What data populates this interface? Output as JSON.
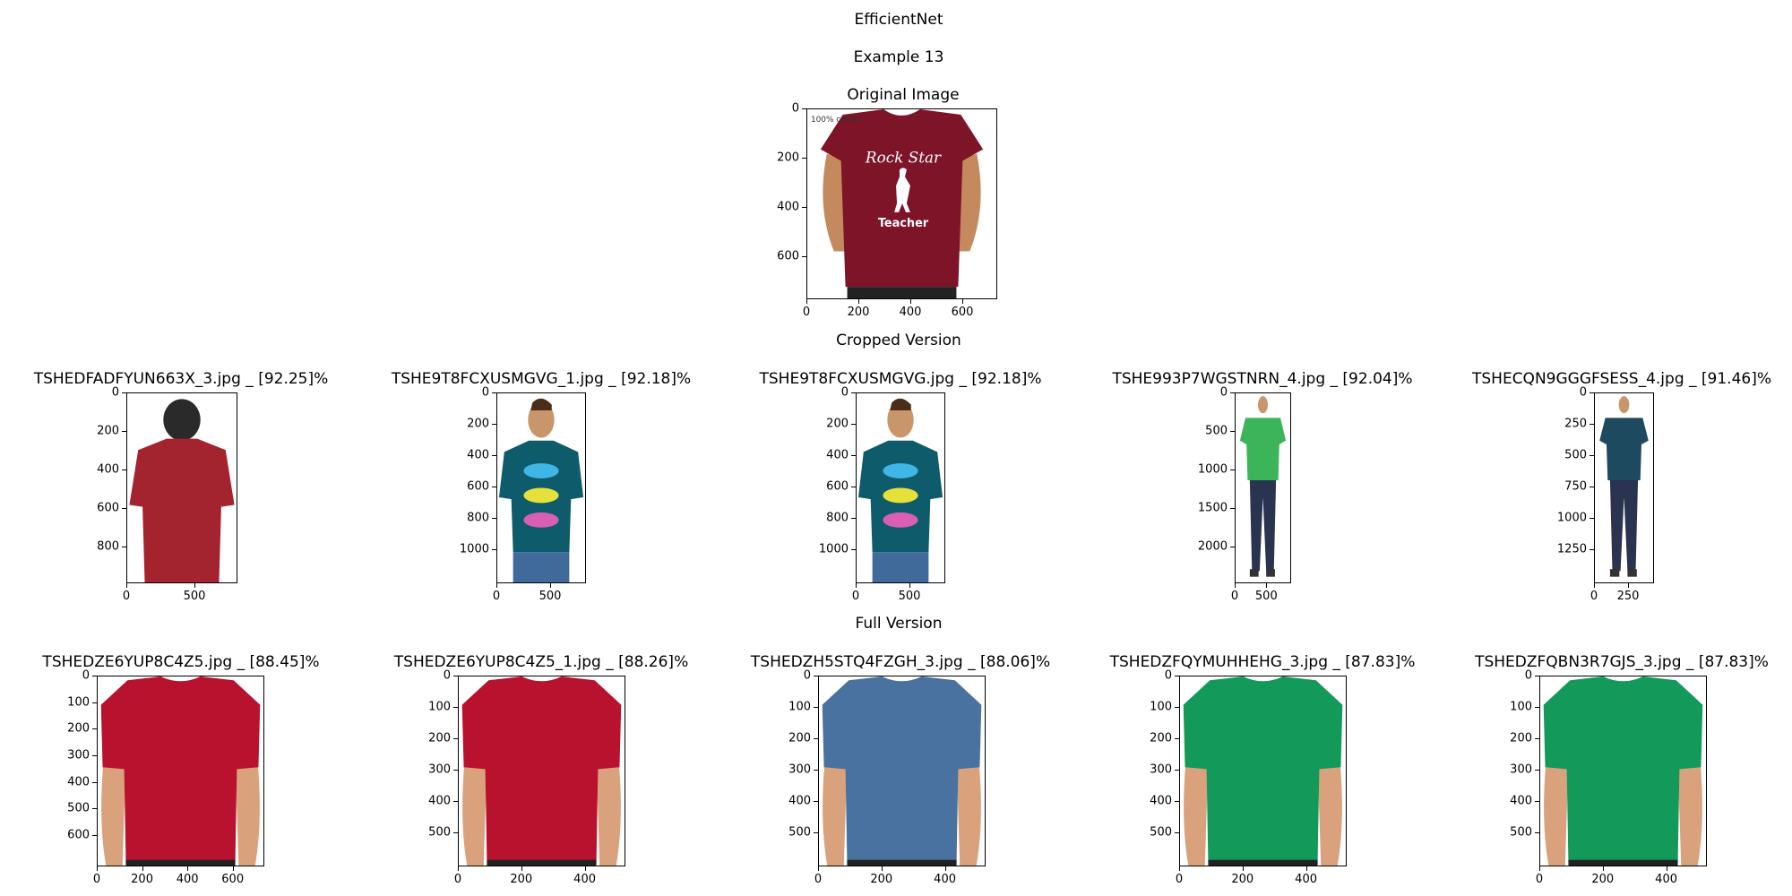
{
  "figure": {
    "title": "EfficientNet",
    "subtitle": "Example 13",
    "cropped_heading": "Cropped Version",
    "full_heading": "Full Version"
  },
  "original": {
    "title": "Original Image",
    "print_text": [
      "100% cotton",
      "Rock Star",
      "Teacher"
    ],
    "shirt_color": "#7d1428",
    "y_ticks": [
      "0",
      "200",
      "400",
      "600"
    ],
    "x_ticks": [
      "0",
      "200",
      "400",
      "600"
    ]
  },
  "cropped": [
    {
      "title": "TSHEDFADFYUN663X_3.jpg _ [92.25]%",
      "shirt_color": "#a3232e",
      "view": "back",
      "y_ticks": [
        "0",
        "200",
        "400",
        "600",
        "800"
      ],
      "x_ticks": [
        "0",
        "500"
      ]
    },
    {
      "title": "TSHE9T8FCXUSMGVG_1.jpg _ [92.18]%",
      "shirt_color": "#0e5c6b",
      "view": "bikes",
      "y_ticks": [
        "0",
        "200",
        "400",
        "600",
        "800",
        "1000"
      ],
      "x_ticks": [
        "0",
        "500"
      ]
    },
    {
      "title": "TSHE9T8FCXUSMGVG.jpg _ [92.18]%",
      "shirt_color": "#0e5c6b",
      "view": "bikes",
      "y_ticks": [
        "0",
        "200",
        "400",
        "600",
        "800",
        "1000"
      ],
      "x_ticks": [
        "0",
        "500"
      ]
    },
    {
      "title": "TSHE993P7WGSTNRN_4.jpg _ [92.04]%",
      "shirt_color": "#3cb45a",
      "view": "full-body",
      "y_ticks": [
        "0",
        "500",
        "1000",
        "1500",
        "2000"
      ],
      "x_ticks": [
        "0",
        "500"
      ]
    },
    {
      "title": "TSHECQN9GGGFSESS_4.jpg _ [91.46]%",
      "shirt_color": "#1d4a5e",
      "view": "full-body",
      "y_ticks": [
        "0",
        "250",
        "500",
        "750",
        "1000",
        "1250"
      ],
      "x_ticks": [
        "0",
        "250"
      ]
    }
  ],
  "full": [
    {
      "title": "TSHEDZE6YUP8C4Z5.jpg _ [88.45]%",
      "shirt_color": "#b8122e",
      "y_ticks": [
        "0",
        "100",
        "200",
        "300",
        "400",
        "500",
        "600"
      ],
      "x_ticks": [
        "0",
        "200",
        "400",
        "600"
      ]
    },
    {
      "title": "TSHEDZE6YUP8C4Z5_1.jpg _ [88.26]%",
      "shirt_color": "#b8122e",
      "y_ticks": [
        "0",
        "100",
        "200",
        "300",
        "400",
        "500"
      ],
      "x_ticks": [
        "0",
        "200",
        "400"
      ]
    },
    {
      "title": "TSHEDZH5STQ4FZGH_3.jpg _ [88.06]%",
      "shirt_color": "#4a72a0",
      "y_ticks": [
        "0",
        "100",
        "200",
        "300",
        "400",
        "500"
      ],
      "x_ticks": [
        "0",
        "200",
        "400"
      ]
    },
    {
      "title": "TSHEDZFQYMUHHEHG_3.jpg _ [87.83]%",
      "shirt_color": "#13995a",
      "y_ticks": [
        "0",
        "100",
        "200",
        "300",
        "400",
        "500"
      ],
      "x_ticks": [
        "0",
        "200",
        "400"
      ]
    },
    {
      "title": "TSHEDZFQBN3R7GJS_3.jpg _ [87.83]%",
      "shirt_color": "#13995a",
      "y_ticks": [
        "0",
        "100",
        "200",
        "300",
        "400",
        "500"
      ],
      "x_ticks": [
        "0",
        "200",
        "400"
      ]
    }
  ]
}
